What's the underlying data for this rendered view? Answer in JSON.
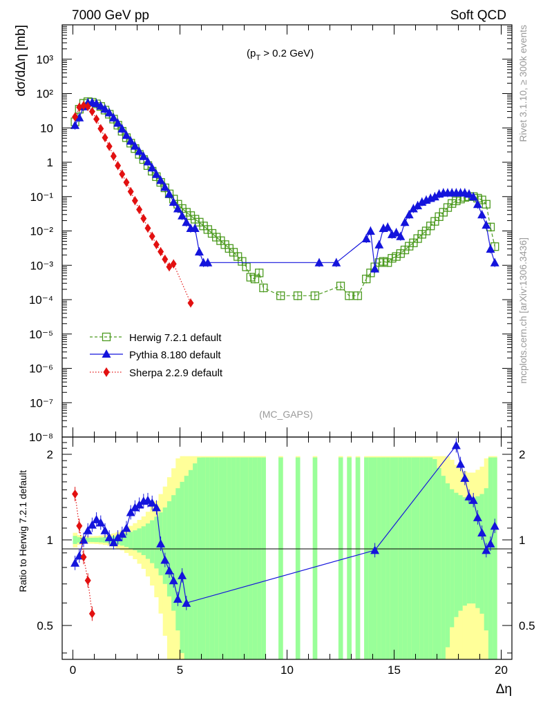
{
  "header": {
    "left": "7000 GeV pp",
    "right": "Soft QCD"
  },
  "side_labels": {
    "upper": "Rivet 3.1.10, ≥ 300k events",
    "lower": "mcplots.cern.ch [arXiv:1306.3436]"
  },
  "chart_data": [
    {
      "type": "line",
      "ylabel": "dσ/dΔη [mb]",
      "yscale": "log",
      "ylim": [
        1e-08,
        10000.0
      ],
      "xlim": [
        -0.5,
        20.5
      ],
      "annotation": "(p_T > 0.2 GeV)",
      "annotation_parts": {
        "pre": "(p",
        "sub": "T",
        "post": " > 0.2 GeV)"
      },
      "watermark": "(MC_GAPS)",
      "legend_position": "lower-left",
      "ytick_labels": [
        "10⁻⁸",
        "10⁻⁷",
        "10⁻⁶",
        "10⁻⁵",
        "10⁻⁴",
        "10⁻³",
        "10⁻²",
        "10⁻¹",
        "1",
        "10",
        "10²",
        "10³"
      ],
      "series": [
        {
          "name": "Herwig 7.2.1 default",
          "color": "#4c9a1f",
          "marker": "open-square",
          "linestyle": "dashed",
          "x": [
            0.1,
            0.3,
            0.5,
            0.7,
            0.9,
            1.1,
            1.3,
            1.5,
            1.7,
            1.9,
            2.1,
            2.3,
            2.5,
            2.7,
            2.9,
            3.1,
            3.3,
            3.5,
            3.7,
            3.9,
            4.1,
            4.3,
            4.5,
            4.7,
            4.9,
            5.1,
            5.3,
            5.5,
            5.7,
            5.9,
            6.1,
            6.3,
            6.5,
            6.7,
            6.9,
            7.1,
            7.3,
            7.5,
            7.7,
            7.9,
            8.1,
            8.3,
            8.5,
            8.7,
            8.9,
            9.7,
            10.5,
            11.3,
            12.5,
            12.9,
            13.3,
            13.7,
            13.9,
            14.1,
            14.3,
            14.5,
            14.7,
            14.9,
            15.1,
            15.3,
            15.5,
            15.7,
            15.9,
            16.1,
            16.3,
            16.5,
            16.7,
            16.9,
            17.1,
            17.3,
            17.5,
            17.7,
            17.9,
            18.1,
            18.3,
            18.5,
            18.7,
            18.9,
            19.1,
            19.3,
            19.5,
            19.7
          ],
          "y": [
            15,
            35,
            52,
            58,
            56,
            50,
            42,
            33,
            25,
            18,
            12,
            8,
            5.2,
            3.6,
            2.5,
            1.7,
            1.2,
            0.8,
            0.55,
            0.38,
            0.26,
            0.18,
            0.12,
            0.085,
            0.06,
            0.045,
            0.035,
            0.028,
            0.022,
            0.018,
            0.014,
            0.011,
            0.0085,
            0.0066,
            0.0052,
            0.004,
            0.0031,
            0.0024,
            0.0018,
            0.0013,
            0.0009,
            0.00045,
            0.0004,
            0.0006,
            0.00022,
            0.00013,
            0.00013,
            0.00013,
            0.00025,
            0.00013,
            0.00013,
            0.0004,
            0.0006,
            0.0009,
            0.0012,
            0.0013,
            0.0012,
            0.0016,
            0.0018,
            0.0022,
            0.0028,
            0.0036,
            0.0045,
            0.006,
            0.008,
            0.01,
            0.014,
            0.019,
            0.026,
            0.035,
            0.048,
            0.063,
            0.075,
            0.085,
            0.095,
            0.1,
            0.1,
            0.09,
            0.08,
            0.06,
            0.013,
            0.0035
          ]
        },
        {
          "name": "Pythia 8.180 default",
          "color": "#1414dc",
          "marker": "filled-triangle",
          "linestyle": "solid",
          "x": [
            0.1,
            0.3,
            0.5,
            0.7,
            0.9,
            1.1,
            1.3,
            1.5,
            1.7,
            1.9,
            2.1,
            2.3,
            2.5,
            2.7,
            2.9,
            3.1,
            3.3,
            3.5,
            3.7,
            3.9,
            4.1,
            4.3,
            4.5,
            4.7,
            4.9,
            5.1,
            5.3,
            5.5,
            5.7,
            5.9,
            6.1,
            6.3,
            11.5,
            12.3,
            13.7,
            13.9,
            14.1,
            14.3,
            14.5,
            14.7,
            14.9,
            15.1,
            15.3,
            15.5,
            15.7,
            15.9,
            16.1,
            16.3,
            16.5,
            16.7,
            16.9,
            17.1,
            17.3,
            17.5,
            17.7,
            17.9,
            18.1,
            18.3,
            18.5,
            18.7,
            18.9,
            19.1,
            19.3,
            19.5,
            19.7
          ],
          "y": [
            12,
            20,
            42,
            55,
            56,
            52,
            44,
            36,
            28,
            20,
            14,
            9.5,
            6.2,
            4.2,
            3,
            2.1,
            1.5,
            1.05,
            0.7,
            0.45,
            0.3,
            0.19,
            0.12,
            0.07,
            0.045,
            0.028,
            0.018,
            0.012,
            0.012,
            0.0025,
            0.0012,
            0.0012,
            0.0012,
            0.0012,
            0.006,
            0.01,
            0.0008,
            0.004,
            0.012,
            0.013,
            0.008,
            0.009,
            0.007,
            0.018,
            0.03,
            0.045,
            0.055,
            0.07,
            0.08,
            0.09,
            0.1,
            0.12,
            0.13,
            0.13,
            0.13,
            0.13,
            0.13,
            0.13,
            0.12,
            0.1,
            0.06,
            0.03,
            0.015,
            0.003,
            0.0012
          ]
        },
        {
          "name": "Sherpa 2.2.9 default",
          "color": "#e21010",
          "marker": "filled-diamond",
          "linestyle": "dotted",
          "x": [
            0.1,
            0.3,
            0.5,
            0.7,
            0.9,
            1.1,
            1.3,
            1.5,
            1.7,
            1.9,
            2.1,
            2.3,
            2.5,
            2.7,
            2.9,
            3.1,
            3.3,
            3.5,
            3.7,
            3.9,
            4.1,
            4.3,
            4.5,
            4.7,
            5.5
          ],
          "y": [
            21,
            40,
            45,
            42,
            30,
            18,
            9.5,
            5.2,
            2.9,
            1.5,
            0.8,
            0.45,
            0.26,
            0.14,
            0.076,
            0.042,
            0.023,
            0.012,
            0.007,
            0.004,
            0.0025,
            0.0015,
            0.0009,
            0.0011,
            8e-05
          ]
        }
      ]
    },
    {
      "type": "line",
      "ylabel": "Ratio to Herwig 7.2.1 default",
      "xlabel": "Δη",
      "xlim": [
        -0.5,
        20.5
      ],
      "ylim": [
        0.38,
        2.3
      ],
      "yscale": "log",
      "xticks": [
        0,
        5,
        10,
        15,
        20
      ],
      "yticks": [
        0.5,
        1,
        2
      ],
      "reference_line": 1,
      "bands": {
        "inner_color": "#99ff99",
        "outer_color": "#ffff99",
        "description": "Herwig 7.2.1 statistical uncertainty band"
      },
      "series": [
        {
          "name": "Pythia 8.180 default",
          "color": "#1414dc",
          "x": [
            0.1,
            0.3,
            0.5,
            0.7,
            0.9,
            1.1,
            1.3,
            1.5,
            1.7,
            1.9,
            2.1,
            2.3,
            2.5,
            2.7,
            2.9,
            3.1,
            3.3,
            3.5,
            3.7,
            3.9,
            4.1,
            4.3,
            4.5,
            4.7,
            4.9,
            5.1,
            5.3,
            14.1,
            17.9,
            18.1,
            18.3,
            18.5,
            18.7,
            18.9,
            19.1,
            19.3,
            19.5,
            19.7
          ],
          "y": [
            0.83,
            0.88,
            1.0,
            1.08,
            1.13,
            1.18,
            1.15,
            1.08,
            1.02,
            0.98,
            1.02,
            1.05,
            1.1,
            1.25,
            1.3,
            1.33,
            1.37,
            1.38,
            1.35,
            1.3,
            0.97,
            0.85,
            0.78,
            0.72,
            0.62,
            0.75,
            0.6,
            0.92,
            2.15,
            1.85,
            1.65,
            1.42,
            1.38,
            1.2,
            1.06,
            0.92,
            0.97,
            1.12
          ]
        },
        {
          "name": "Sherpa 2.2.9 default",
          "color": "#e21010",
          "x": [
            0.1,
            0.3,
            0.5,
            0.7,
            0.9
          ],
          "y": [
            1.45,
            1.12,
            0.87,
            0.72,
            0.55
          ]
        }
      ]
    }
  ]
}
